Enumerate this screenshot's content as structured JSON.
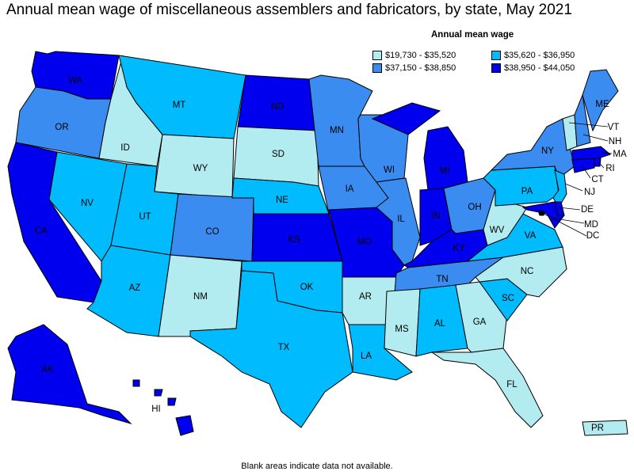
{
  "title": "Annual mean wage of miscellaneous assemblers and fabricators, by state, May 2021",
  "legend": {
    "title": "Annual mean wage",
    "bins": [
      {
        "label": "$19,730 - $35,520",
        "color": "#b2ecf0"
      },
      {
        "label": "$35,620 - $36,950",
        "color": "#00bcff"
      },
      {
        "label": "$37,150 - $38,850",
        "color": "#3a8cf0"
      },
      {
        "label": "$38,950 - $44,050",
        "color": "#0000ee"
      }
    ]
  },
  "footnote": "Blank areas indicate data not available.",
  "states": [
    {
      "abbr": "WA",
      "bin": 3
    },
    {
      "abbr": "OR",
      "bin": 2
    },
    {
      "abbr": "CA",
      "bin": 3
    },
    {
      "abbr": "NV",
      "bin": 1
    },
    {
      "abbr": "ID",
      "bin": 0
    },
    {
      "abbr": "MT",
      "bin": 1
    },
    {
      "abbr": "WY",
      "bin": 0
    },
    {
      "abbr": "UT",
      "bin": 1
    },
    {
      "abbr": "AZ",
      "bin": 1
    },
    {
      "abbr": "CO",
      "bin": 2
    },
    {
      "abbr": "NM",
      "bin": 0
    },
    {
      "abbr": "ND",
      "bin": 3
    },
    {
      "abbr": "SD",
      "bin": 0
    },
    {
      "abbr": "NE",
      "bin": 1
    },
    {
      "abbr": "KS",
      "bin": 3
    },
    {
      "abbr": "OK",
      "bin": 1
    },
    {
      "abbr": "TX",
      "bin": 1
    },
    {
      "abbr": "MN",
      "bin": 2
    },
    {
      "abbr": "IA",
      "bin": 2
    },
    {
      "abbr": "MO",
      "bin": 3
    },
    {
      "abbr": "AR",
      "bin": 0
    },
    {
      "abbr": "LA",
      "bin": 1
    },
    {
      "abbr": "WI",
      "bin": 2
    },
    {
      "abbr": "IL",
      "bin": 2
    },
    {
      "abbr": "MI",
      "bin": 3
    },
    {
      "abbr": "IN",
      "bin": 3
    },
    {
      "abbr": "OH",
      "bin": 2
    },
    {
      "abbr": "KY",
      "bin": 3
    },
    {
      "abbr": "TN",
      "bin": 2
    },
    {
      "abbr": "MS",
      "bin": 0
    },
    {
      "abbr": "AL",
      "bin": 1
    },
    {
      "abbr": "GA",
      "bin": 0
    },
    {
      "abbr": "FL",
      "bin": 0
    },
    {
      "abbr": "SC",
      "bin": 1
    },
    {
      "abbr": "NC",
      "bin": 0
    },
    {
      "abbr": "VA",
      "bin": 1
    },
    {
      "abbr": "WV",
      "bin": 0
    },
    {
      "abbr": "PA",
      "bin": 1
    },
    {
      "abbr": "NY",
      "bin": 2
    },
    {
      "abbr": "VT",
      "bin": 0
    },
    {
      "abbr": "NH",
      "bin": 2
    },
    {
      "abbr": "ME",
      "bin": 2
    },
    {
      "abbr": "MA",
      "bin": 3
    },
    {
      "abbr": "RI",
      "bin": 3
    },
    {
      "abbr": "CT",
      "bin": 3
    },
    {
      "abbr": "NJ",
      "bin": 1
    },
    {
      "abbr": "DE",
      "bin": 3
    },
    {
      "abbr": "MD",
      "bin": 3
    },
    {
      "abbr": "DC",
      "bin": 3
    },
    {
      "abbr": "AK",
      "bin": 3
    },
    {
      "abbr": "HI",
      "bin": 3
    },
    {
      "abbr": "PR",
      "bin": 0
    }
  ]
}
